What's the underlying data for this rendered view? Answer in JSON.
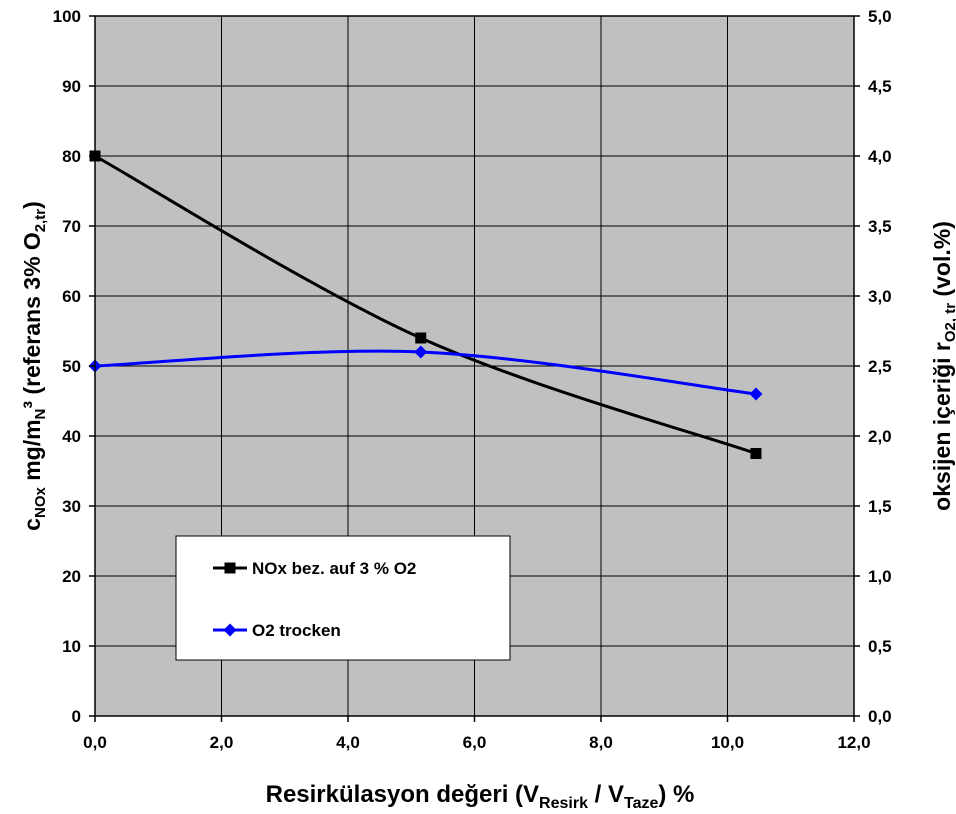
{
  "chart_data": {
    "type": "line",
    "title": "",
    "xlabel": {
      "main": "Resirkülasyon değeri (V",
      "sub1": "Resirk",
      "mid": " / V",
      "sub2": "Taze",
      "tail": ")  %"
    },
    "ylabel_left": {
      "c": "c",
      "sub": "NOx",
      "text": "  mg/m",
      "subN": "N",
      "text2": "³ (referans 3% O",
      "sub2": "2,tr",
      "close": ")"
    },
    "ylabel_right": {
      "text": "oksijen içeriği r",
      "sub": "O2, tr",
      "close": " (vol.%)"
    },
    "xlim": [
      0,
      12
    ],
    "ylim_left": [
      0,
      100
    ],
    "ylim_right": [
      0,
      5
    ],
    "x_ticks": [
      "0,0",
      "2,0",
      "4,0",
      "6,0",
      "8,0",
      "10,0",
      "12,0"
    ],
    "y_left_ticks": [
      "0",
      "10",
      "20",
      "30",
      "40",
      "50",
      "60",
      "70",
      "80",
      "90",
      "100"
    ],
    "y_right_ticks": [
      "0,0",
      "0,5",
      "1,0",
      "1,5",
      "2,0",
      "2,5",
      "3,0",
      "3,5",
      "4,0",
      "4,5",
      "5,0"
    ],
    "grid": true,
    "plot_background": "#c0c0c0",
    "legend_position": "lower-left",
    "series": [
      {
        "name": "NOx bez. auf 3 % O2",
        "axis": "left",
        "color": "#000000",
        "marker": "square",
        "x": [
          0.0,
          5.15,
          10.45
        ],
        "y": [
          80,
          54,
          37.5
        ]
      },
      {
        "name": "O2 trocken",
        "axis": "right",
        "color": "#0000ff",
        "marker": "diamond",
        "x": [
          0.0,
          5.15,
          10.45
        ],
        "y": [
          2.5,
          2.6,
          2.3
        ]
      }
    ]
  }
}
